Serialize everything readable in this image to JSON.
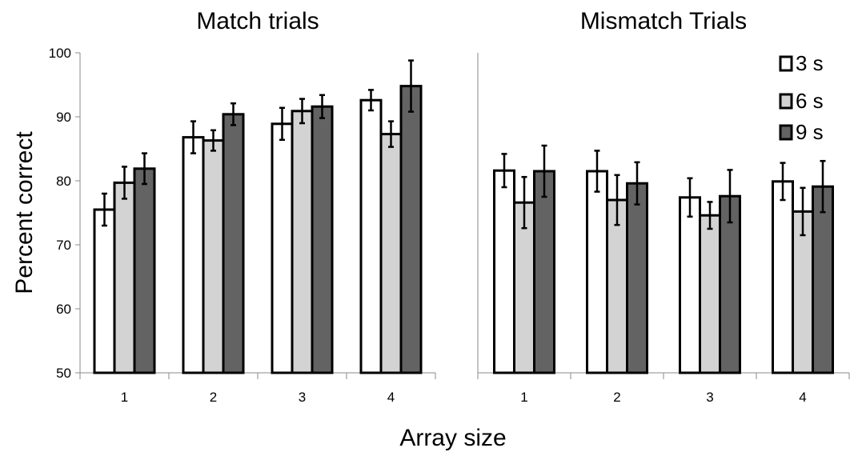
{
  "chart_data": [
    {
      "type": "bar",
      "title": "Match trials",
      "categories": [
        "1",
        "2",
        "3",
        "4"
      ],
      "series": [
        {
          "name": "3 s",
          "color": "#ffffff",
          "values": [
            75.5,
            86.8,
            88.9,
            92.6
          ],
          "errors": [
            2.5,
            2.5,
            2.5,
            1.6
          ]
        },
        {
          "name": "6 s",
          "color": "#d3d3d3",
          "values": [
            79.7,
            86.3,
            90.9,
            87.3
          ],
          "errors": [
            2.5,
            1.6,
            1.9,
            2.0
          ]
        },
        {
          "name": "9 s",
          "color": "#636363",
          "values": [
            81.9,
            90.4,
            91.6,
            94.8
          ],
          "errors": [
            2.4,
            1.7,
            1.8,
            4.0
          ]
        }
      ],
      "xlabel": "Array size",
      "ylabel": "Percent correct",
      "ylim": [
        50,
        100
      ],
      "yticks": [
        "50",
        "60",
        "70",
        "80",
        "90",
        "100"
      ],
      "grid": false
    },
    {
      "type": "bar",
      "title": "Mismatch Trials",
      "categories": [
        "1",
        "2",
        "3",
        "4"
      ],
      "series": [
        {
          "name": "3 s",
          "color": "#ffffff",
          "values": [
            81.6,
            81.5,
            77.4,
            79.9
          ],
          "errors": [
            2.6,
            3.2,
            3.0,
            2.9
          ]
        },
        {
          "name": "6 s",
          "color": "#d3d3d3",
          "values": [
            76.6,
            77.0,
            74.6,
            75.2
          ],
          "errors": [
            4.0,
            3.9,
            2.1,
            3.7
          ]
        },
        {
          "name": "9 s",
          "color": "#636363",
          "values": [
            81.5,
            79.6,
            77.6,
            79.1
          ],
          "errors": [
            4.0,
            3.3,
            4.1,
            4.0
          ]
        }
      ],
      "xlabel": "Array size",
      "ylim": [
        50,
        100
      ],
      "grid": false
    }
  ],
  "legend": {
    "placement": "top-right",
    "items": [
      {
        "label": "3 s",
        "color": "#ffffff"
      },
      {
        "label": "6 s",
        "color": "#d3d3d3"
      },
      {
        "label": "9 s",
        "color": "#636363"
      }
    ]
  }
}
